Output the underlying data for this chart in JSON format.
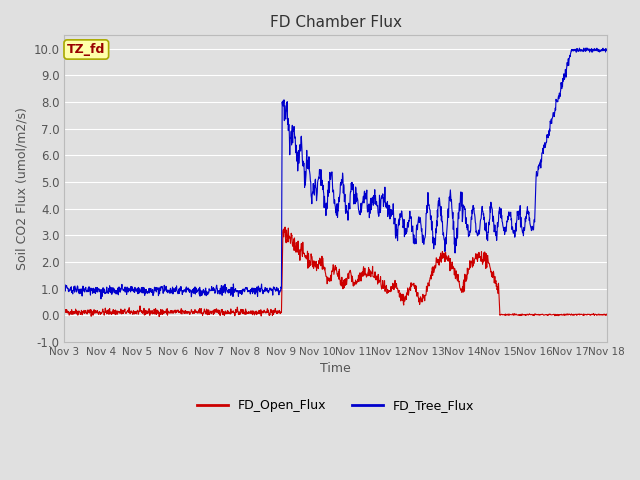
{
  "title": "FD Chamber Flux",
  "xlabel": "Time",
  "ylabel": "Soil CO2 Flux (umol/m2/s)",
  "ylim": [
    -1.0,
    10.5
  ],
  "yticks": [
    -1.0,
    0.0,
    1.0,
    2.0,
    3.0,
    4.0,
    5.0,
    6.0,
    7.0,
    8.0,
    9.0,
    10.0
  ],
  "ytick_labels": [
    "-1.0",
    "0.0",
    "1.0",
    "2.0",
    "3.0",
    "4.0",
    "5.0",
    "6.0",
    "7.0",
    "8.0",
    "9.0",
    "10.0"
  ],
  "xtick_labels": [
    "Nov 3",
    "Nov 4",
    "Nov 5",
    "Nov 6",
    "Nov 7",
    "Nov 8",
    "Nov 9",
    "Nov 10",
    "Nov 11",
    "Nov 12",
    "Nov 13",
    "Nov 14",
    "Nov 15",
    "Nov 16",
    "Nov 17",
    "Nov 18"
  ],
  "bg_color": "#e0e0e0",
  "plot_bg_color": "#e0e0e0",
  "grid_color": "#ffffff",
  "open_flux_color": "#cc0000",
  "tree_flux_color": "#0000cc",
  "legend_labels": [
    "FD_Open_Flux",
    "FD_Tree_Flux"
  ],
  "annotation_text": "TZ_fd",
  "annotation_bg": "#ffffaa",
  "annotation_border": "#aaaa00",
  "annotation_text_color": "#990000",
  "fig_width": 6.4,
  "fig_height": 4.8,
  "dpi": 100
}
